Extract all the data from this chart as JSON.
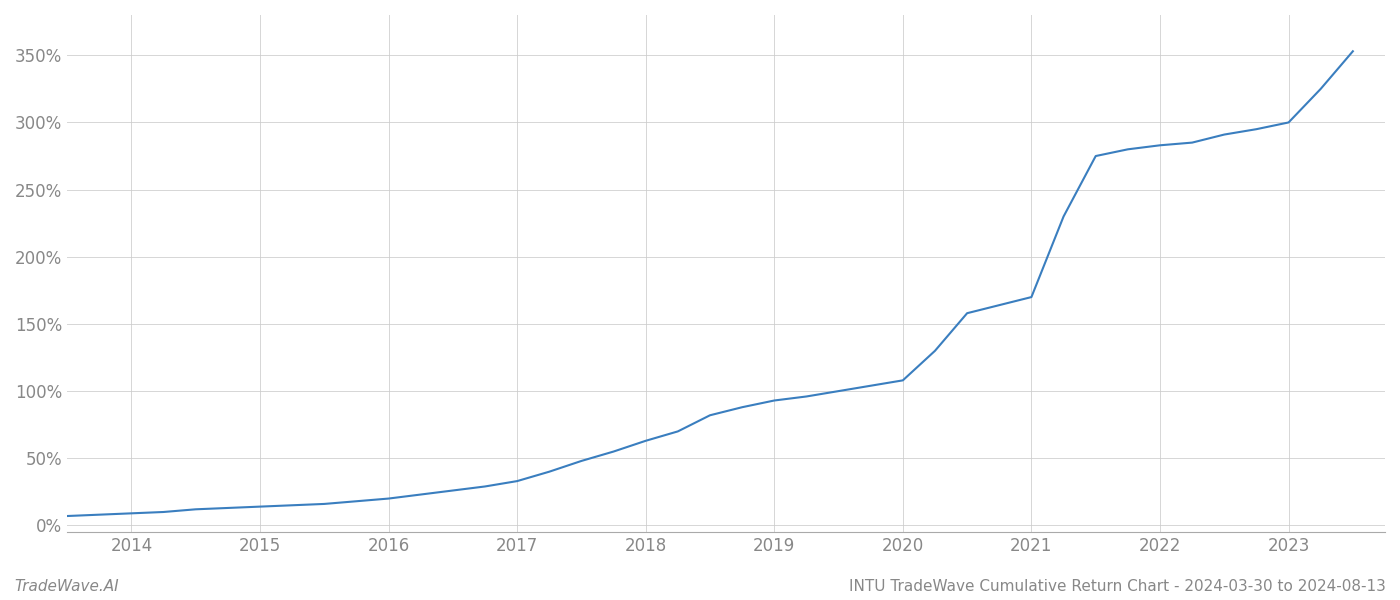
{
  "title": "INTU TradeWave Cumulative Return Chart - 2024-03-30 to 2024-08-13",
  "watermark": "TradeWave.AI",
  "line_color": "#3a7ebf",
  "background_color": "#ffffff",
  "grid_color": "#cccccc",
  "x_years": [
    2014,
    2015,
    2016,
    2017,
    2018,
    2019,
    2020,
    2021,
    2022,
    2023
  ],
  "x_data": [
    2013.25,
    2013.5,
    2013.75,
    2014.0,
    2014.25,
    2014.5,
    2014.75,
    2015.0,
    2015.25,
    2015.5,
    2015.75,
    2016.0,
    2016.25,
    2016.5,
    2016.75,
    2017.0,
    2017.25,
    2017.5,
    2017.75,
    2018.0,
    2018.25,
    2018.5,
    2018.75,
    2019.0,
    2019.25,
    2019.5,
    2019.75,
    2020.0,
    2020.25,
    2020.5,
    2020.75,
    2021.0,
    2021.25,
    2021.5,
    2021.75,
    2022.0,
    2022.25,
    2022.5,
    2022.75,
    2023.0,
    2023.25,
    2023.5
  ],
  "y_data": [
    6,
    7,
    8,
    9,
    10,
    12,
    13,
    14,
    15,
    16,
    18,
    20,
    23,
    26,
    29,
    33,
    40,
    48,
    55,
    63,
    70,
    82,
    88,
    93,
    96,
    100,
    104,
    108,
    130,
    158,
    164,
    170,
    230,
    275,
    280,
    283,
    285,
    291,
    295,
    300,
    325,
    353
  ],
  "ylim": [
    -5,
    380
  ],
  "yticks": [
    0,
    50,
    100,
    150,
    200,
    250,
    300,
    350
  ],
  "xlim": [
    2013.5,
    2023.75
  ],
  "title_fontsize": 11,
  "tick_fontsize": 12,
  "watermark_fontsize": 11,
  "line_width": 1.5
}
